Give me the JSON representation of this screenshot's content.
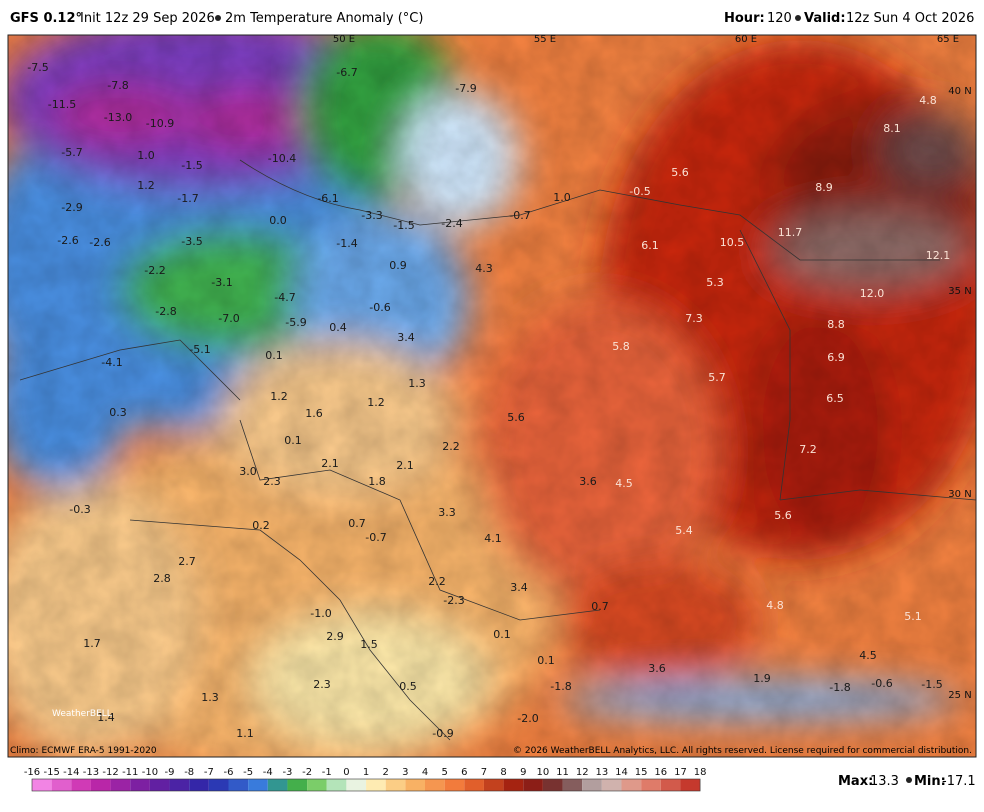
{
  "header": {
    "model": "GFS 0.12°",
    "init": "Init 12z 29 Sep 2026",
    "product": "2m Temperature Anomaly (°C)",
    "hour_label": "Hour:",
    "hour": "120",
    "valid_label": "Valid:",
    "valid": "12z Sun 4 Oct 2026"
  },
  "map": {
    "grid_labels": [
      "50 E",
      "55 E",
      "60 E",
      "65 E",
      "40 N",
      "35 N",
      "30 N",
      "25 N"
    ],
    "labels": [
      "-7.5",
      "-7.8",
      "-11.5",
      "-13.0",
      "-10.9",
      "-5.7",
      "1.0",
      "-1.5",
      "-10.4",
      "-6.7",
      "-7.9",
      "1.2",
      "-1.7",
      "-2.9",
      "-6.1",
      "0.0",
      "-3.3",
      "-1.5",
      "-2.4",
      "-0.7",
      "1.0",
      "-0.5",
      "5.6",
      "8.1",
      "4.8",
      "8.9",
      "-2.6",
      "-2.6",
      "-3.5",
      "-1.4",
      "0.9",
      "4.3",
      "6.1",
      "10.5",
      "11.7",
      "12.1",
      "-2.2",
      "-3.1",
      "5.3",
      "12.0",
      "-4.7",
      "-2.8",
      "-7.0",
      "-5.9",
      "0.4",
      "-0.6",
      "7.3",
      "8.8",
      "3.4",
      "-5.1",
      "0.1",
      "5.8",
      "6.9",
      "-4.1",
      "1.3",
      "5.7",
      "1.2",
      "6.5",
      "1.6",
      "1.2",
      "0.3",
      "5.6",
      "0.1",
      "2.2",
      "7.2",
      "2.1",
      "2.1",
      "3.0",
      "2.3",
      "1.8",
      "3.6",
      "4.5",
      "-0.3",
      "3.3",
      "0.2",
      "0.7",
      "-0.7",
      "5.6",
      "4.1",
      "5.4",
      "2.7",
      "2.8",
      "2.2",
      "3.4",
      "-2.3",
      "4.8",
      "0.7",
      "5.1",
      "-1.0",
      "0.1",
      "2.9",
      "1.5",
      "1.7",
      "0.1",
      "4.5",
      "3.6",
      "1.9",
      "-1.8",
      "0.5",
      "2.3",
      "1.3",
      "-0.6",
      "-1.5",
      "-1.8",
      "1.4",
      "-2.0",
      "1.1",
      "-0.9"
    ]
  },
  "footer": {
    "climo": "Climo: ECMWF ERA-5 1991-2020",
    "copyright": "© 2026 WeatherBELL Analytics, LLC. All rights reserved. License required for commercial distribution.",
    "logo": "WeatherBELL",
    "max_label": "Max:",
    "max": "13.3",
    "min_label": "Min:",
    "min": "-17.1"
  },
  "colorbar": {
    "ticks": [
      -16,
      -15,
      -14,
      -13,
      -12,
      -11,
      -10,
      -9,
      -8,
      -7,
      -6,
      -5,
      -4,
      -3,
      -2,
      -1,
      0,
      1,
      2,
      3,
      4,
      5,
      6,
      7,
      8,
      9,
      10,
      11,
      12,
      13,
      14,
      15,
      16,
      17,
      18
    ]
  }
}
